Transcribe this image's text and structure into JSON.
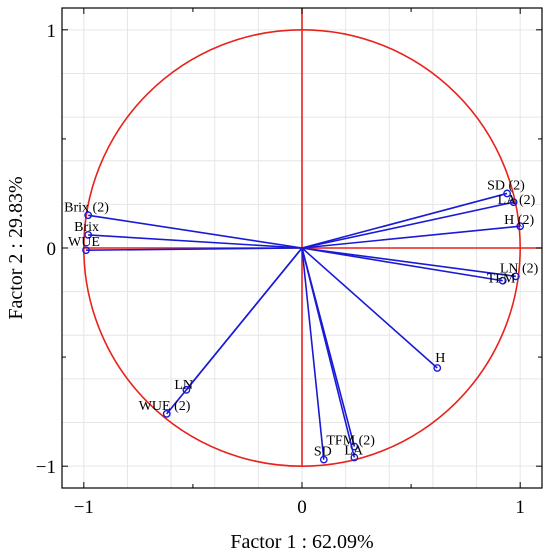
{
  "chart_data": {
    "type": "scatter",
    "subtype": "pca-correlation-circle",
    "xlabel": "Factor 1 : 62.09%",
    "ylabel": "Factor 2 : 29.83%",
    "xlim": [
      -1.1,
      1.1
    ],
    "ylim": [
      -1.1,
      1.1
    ],
    "x_ticks": [
      -1,
      0,
      1
    ],
    "x_tick_labels": [
      "−1",
      "0",
      "1"
    ],
    "y_ticks": [
      -1,
      0,
      1
    ],
    "y_tick_labels": [
      "−1",
      "0",
      "1"
    ],
    "grid": true,
    "unit_circle": true,
    "colors": {
      "circle": "#e8221c",
      "axes": "#e8221c",
      "vectors": "#1a1ad6",
      "markers": "#1a1ad6",
      "grid": "#e6e6e6",
      "frame": "#000000"
    },
    "points": [
      {
        "label": "Brix (2)",
        "x": -0.98,
        "y": 0.15
      },
      {
        "label": "Brix",
        "x": -0.98,
        "y": 0.06
      },
      {
        "label": "WUE",
        "x": -0.99,
        "y": -0.01
      },
      {
        "label": "SD (2)",
        "x": 0.94,
        "y": 0.25
      },
      {
        "label": "LA (2)",
        "x": 0.97,
        "y": 0.21
      },
      {
        "label": "H (2)",
        "x": 1.0,
        "y": 0.1
      },
      {
        "label": "LN (2)",
        "x": 0.98,
        "y": -0.13
      },
      {
        "label": "TFM",
        "x": 0.92,
        "y": -0.15
      },
      {
        "label": "H",
        "x": 0.62,
        "y": -0.55
      },
      {
        "label": "LN",
        "x": -0.53,
        "y": -0.65
      },
      {
        "label": "WUE (2)",
        "x": -0.62,
        "y": -0.76
      },
      {
        "label": "TFM (2)",
        "x": 0.24,
        "y": -0.91
      },
      {
        "label": "LA",
        "x": 0.24,
        "y": -0.96
      },
      {
        "label": "SD",
        "x": 0.1,
        "y": -0.97
      }
    ]
  }
}
